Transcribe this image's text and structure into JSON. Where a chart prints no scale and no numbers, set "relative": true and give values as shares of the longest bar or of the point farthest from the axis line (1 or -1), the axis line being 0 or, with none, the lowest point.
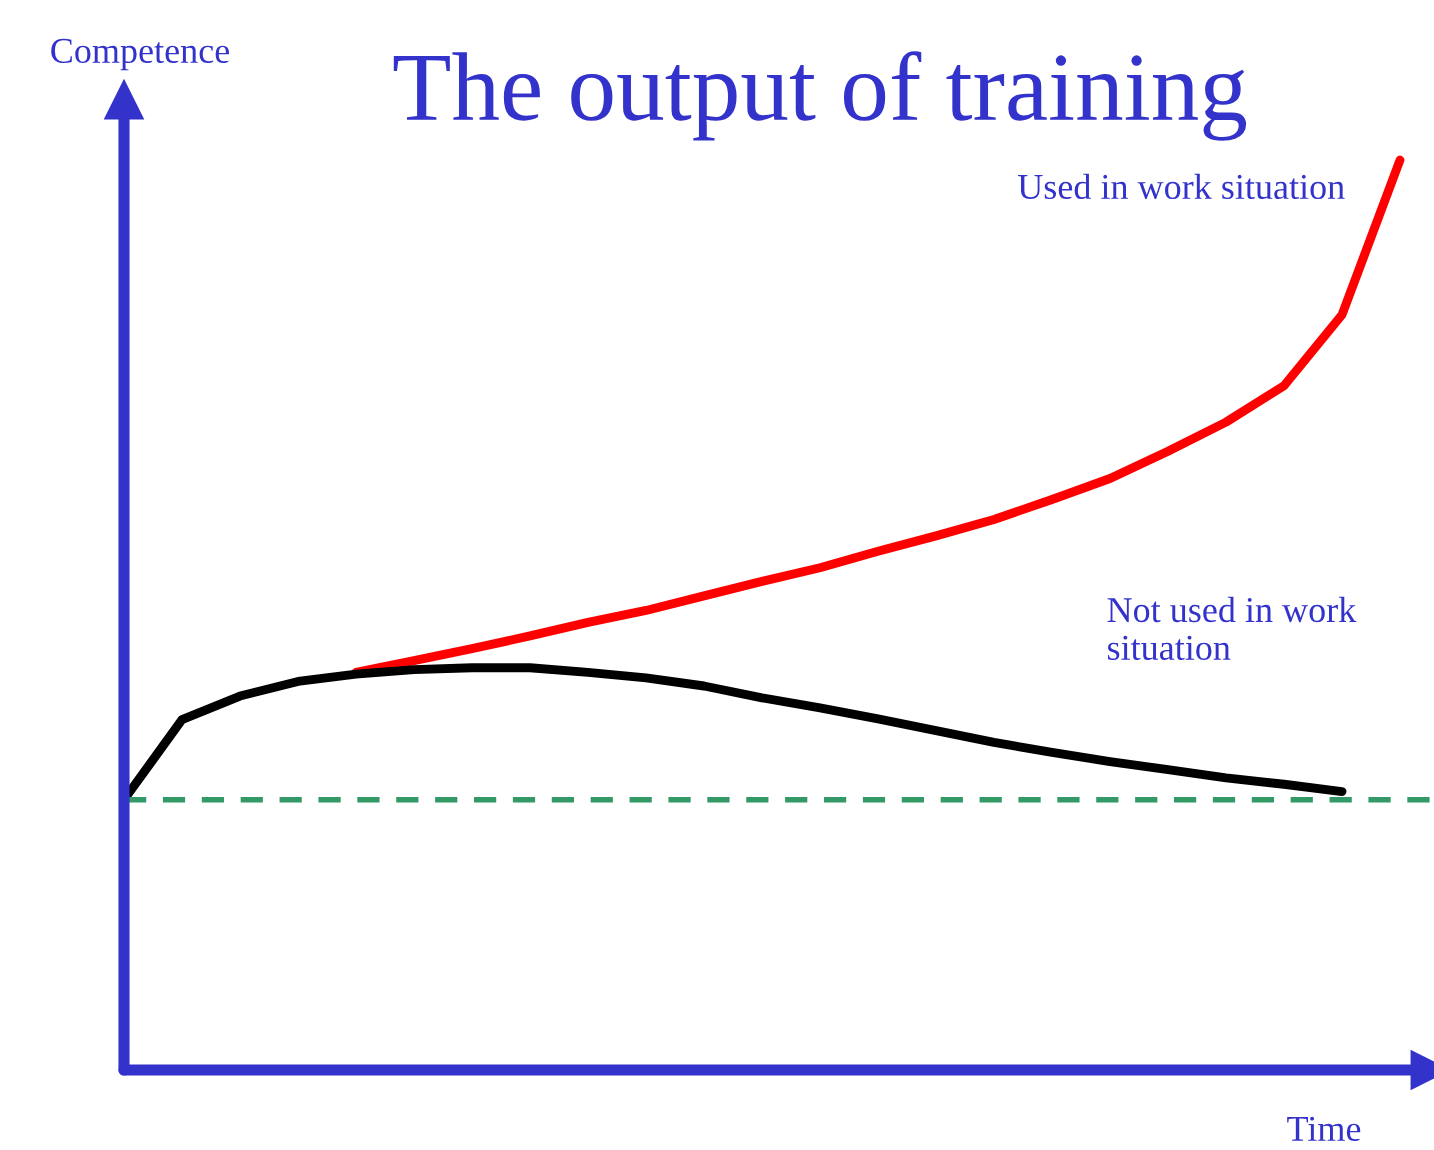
{
  "chart_data": {
    "type": "line",
    "title": "The output of training",
    "xlabel": "Time",
    "ylabel": "Competence",
    "relative": true,
    "legend": false,
    "marker": "none",
    "line_style": "solid",
    "categories": [
      null,
      null,
      null,
      null,
      null,
      null,
      null,
      null,
      null,
      null,
      null,
      null,
      null,
      null,
      null,
      null,
      null,
      null,
      null,
      null,
      null,
      null,
      null
    ],
    "series": [
      {
        "name": "Used in work situation",
        "color": "#ff0000",
        "values": [
          null,
          null,
          null,
          null,
          0.437,
          0.45,
          0.463,
          0.477,
          0.492,
          0.505,
          0.521,
          0.537,
          0.552,
          0.57,
          0.587,
          0.605,
          0.627,
          0.65,
          0.68,
          0.712,
          0.752,
          0.83,
          1.0
        ]
      },
      {
        "name": "Not used in work situation",
        "color": "#000000",
        "values": [
          0.297,
          0.385,
          0.411,
          0.427,
          0.435,
          0.44,
          0.442,
          0.442,
          0.437,
          0.431,
          0.422,
          0.409,
          0.398,
          0.386,
          0.373,
          0.36,
          0.349,
          0.339,
          0.33,
          0.321,
          0.314,
          0.306,
          null
        ]
      }
    ],
    "ref_lines": [
      {
        "axis": "y",
        "value": 0.297,
        "color": "#339966",
        "line_style": "dashed"
      }
    ]
  }
}
